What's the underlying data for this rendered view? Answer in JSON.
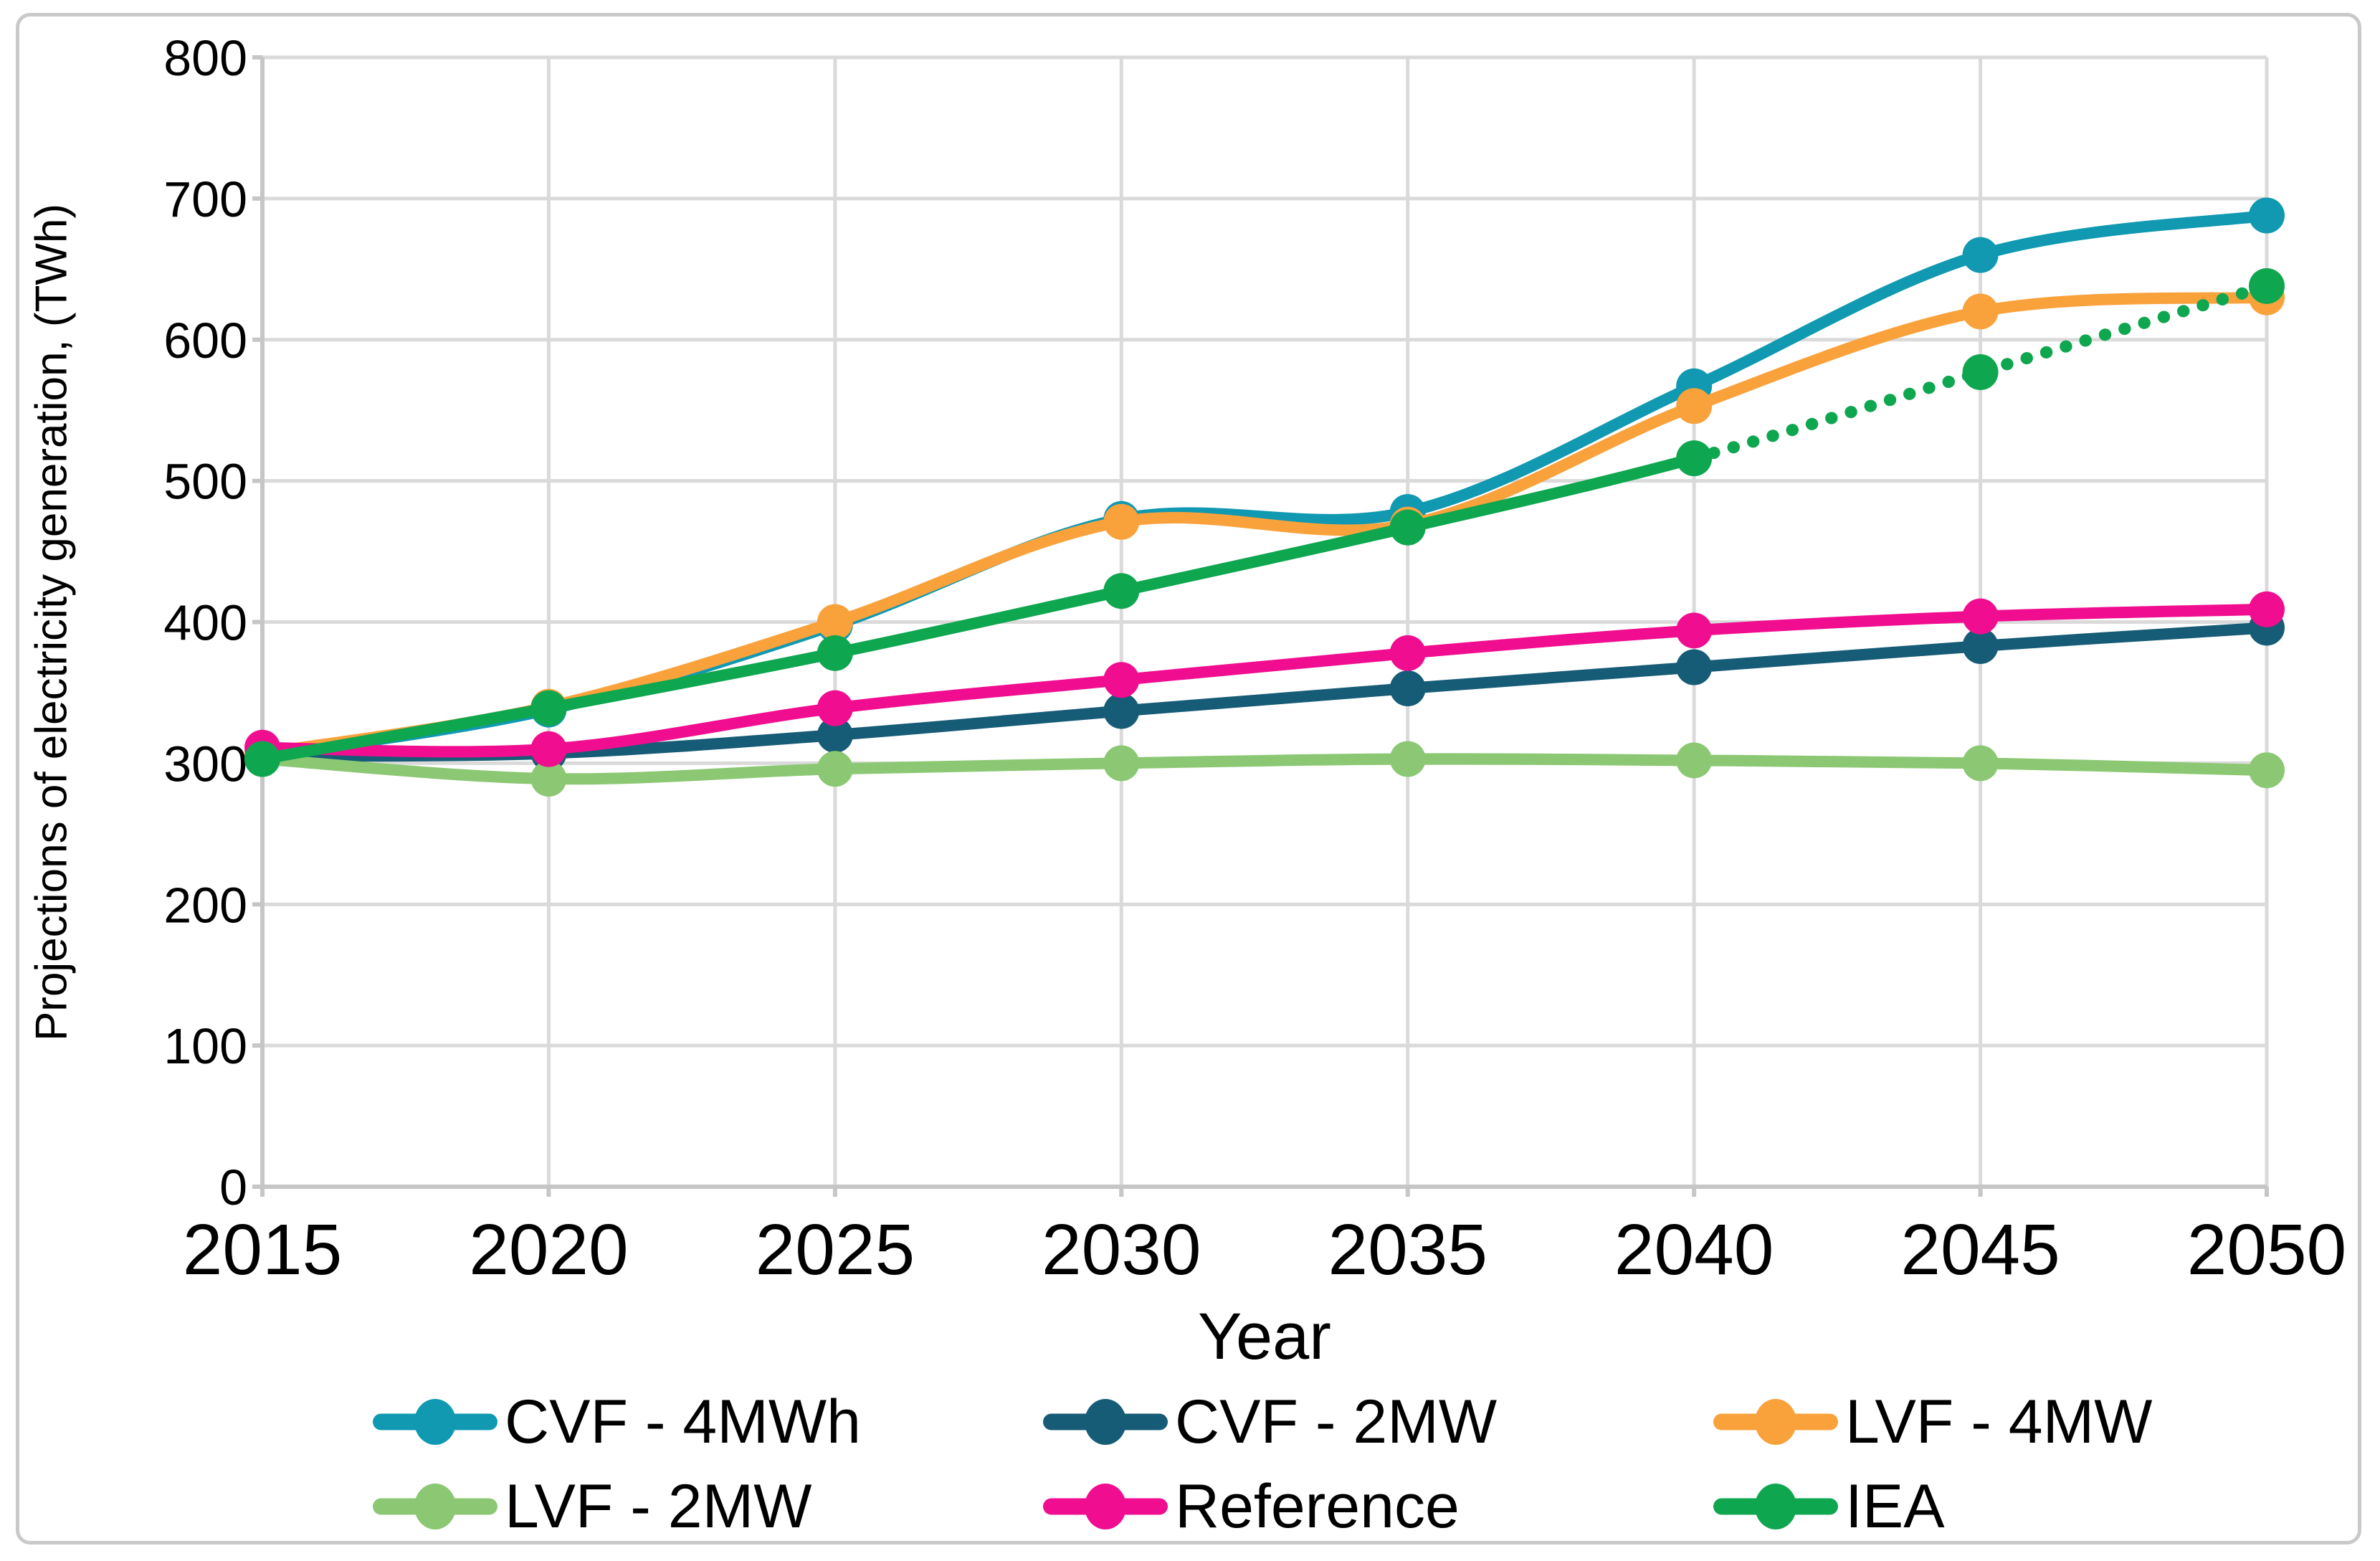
{
  "chart_data": {
    "type": "line",
    "x": [
      2015,
      2020,
      2025,
      2030,
      2035,
      2040,
      2045,
      2050
    ],
    "xlabel": "Year",
    "ylabel": "Projections of electricity generation, (TWh)",
    "ylim": [
      0,
      800
    ],
    "ytick_step": 100,
    "grid": true,
    "legend_position": "bottom",
    "line_style": "smooth",
    "series": [
      {
        "name": "CVF - 4MWh",
        "color": "#1099b1",
        "values": [
          305,
          338,
          398,
          473,
          478,
          567,
          660,
          688
        ]
      },
      {
        "name": "CVF - 2MW",
        "color": "#175c76",
        "values": [
          305,
          307,
          320,
          337,
          353,
          368,
          383,
          396
        ]
      },
      {
        "name": "LVF - 4MW",
        "color": "#f9a23c",
        "values": [
          307,
          340,
          400,
          471,
          469,
          553,
          620,
          630
        ]
      },
      {
        "name": "LVF - 2MW",
        "color": "#8cc873",
        "values": [
          303,
          289,
          296,
          300,
          303,
          302,
          300,
          295
        ]
      },
      {
        "name": "Reference",
        "color": "#f00d90",
        "values": [
          311,
          310,
          339,
          359,
          378,
          394,
          404,
          409
        ]
      },
      {
        "name": "IEA",
        "color": "#0fa650",
        "values": [
          303,
          339,
          378,
          422,
          467,
          516,
          577,
          638
        ],
        "dotted_from": 2040
      }
    ]
  },
  "colors": {
    "gridline": "#dadada",
    "axis": "#c6c6c6",
    "frame": "#c9c9c9",
    "text": "#000000"
  }
}
